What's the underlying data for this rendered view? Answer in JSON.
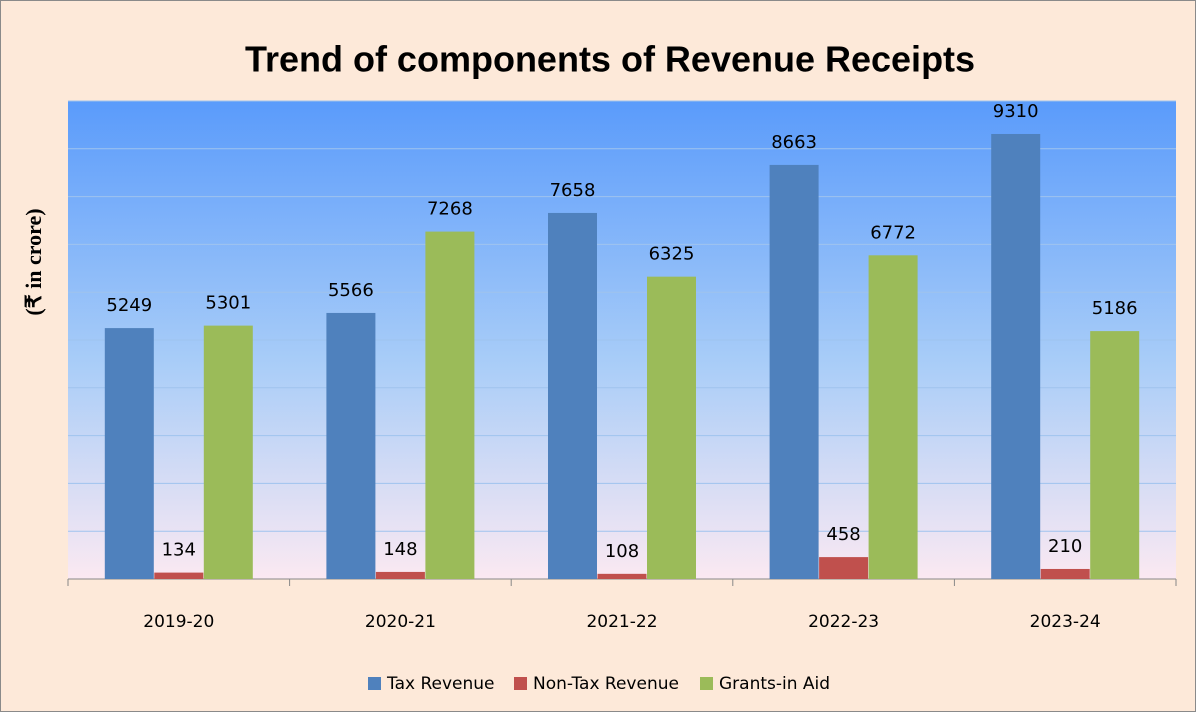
{
  "chart_data": {
    "type": "bar",
    "title": "Trend of components of Revenue Receipts",
    "y_label": "(₹ in crore)",
    "categories": [
      "2019-20",
      "2020-21",
      "2021-22",
      "2022-23",
      "2023-24"
    ],
    "series": [
      {
        "name": "Tax Revenue",
        "color": "#4f81bd",
        "values": [
          5249,
          5566,
          7658,
          8663,
          9310
        ]
      },
      {
        "name": "Non-Tax Revenue",
        "color": "#c0504d",
        "values": [
          134,
          148,
          108,
          458,
          210
        ]
      },
      {
        "name": "Grants-in Aid",
        "color": "#9bbb59",
        "values": [
          5301,
          7268,
          6325,
          6772,
          5186
        ]
      }
    ],
    "ylim": [
      0,
      10000
    ],
    "yticks": [
      0,
      1000,
      2000,
      3000,
      4000,
      5000,
      6000,
      7000,
      8000,
      9000,
      10000
    ],
    "grid": true,
    "legend": "bottom"
  }
}
